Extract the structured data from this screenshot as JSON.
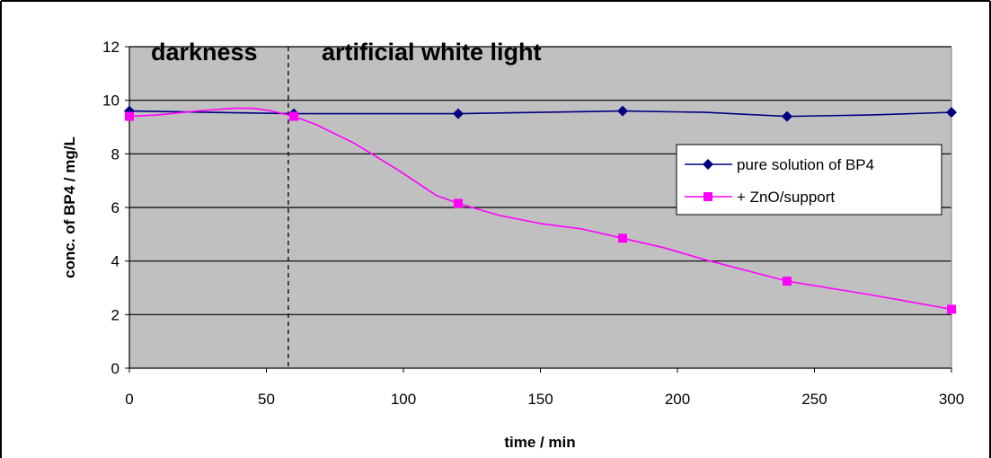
{
  "chart_data": {
    "type": "line",
    "xlabel": "time / min",
    "ylabel": "conc. of BP4 / mg/L",
    "xlim": [
      0,
      300
    ],
    "ylim": [
      0,
      12
    ],
    "xticks": [
      0,
      50,
      100,
      150,
      200,
      250,
      300
    ],
    "yticks": [
      0,
      2,
      4,
      6,
      8,
      10,
      12
    ],
    "grid": "horizontal",
    "plot_background": "#c0c0c0",
    "legend_position": "right",
    "annotations": [
      {
        "text": "darkness",
        "x_from": 0,
        "x_to": 58
      },
      {
        "text": "artificial white light",
        "x_from": 58,
        "x_to": 300
      }
    ],
    "divider_x": 58,
    "series": [
      {
        "name": "pure solution of BP4",
        "color": "#000080",
        "marker": "diamond",
        "x": [
          0,
          60,
          120,
          180,
          240,
          300
        ],
        "y": [
          9.6,
          9.5,
          9.5,
          9.6,
          9.4,
          9.55
        ],
        "curve_x": [
          0,
          60,
          90,
          120,
          150,
          180,
          210,
          240,
          270,
          300
        ],
        "curve_y": [
          9.6,
          9.5,
          9.5,
          9.5,
          9.55,
          9.6,
          9.55,
          9.4,
          9.45,
          9.55
        ]
      },
      {
        "name": "+ ZnO/support",
        "color": "#ff00ff",
        "marker": "square",
        "x": [
          0,
          60,
          120,
          180,
          240,
          300
        ],
        "y": [
          9.4,
          9.4,
          6.15,
          4.85,
          3.25,
          2.2
        ],
        "curve_x": [
          0,
          10,
          25,
          38,
          45,
          52,
          60,
          68,
          82,
          98,
          112,
          120,
          135,
          150,
          165,
          180,
          195,
          210,
          225,
          240,
          270,
          300
        ],
        "curve_y": [
          9.4,
          9.45,
          9.6,
          9.7,
          9.7,
          9.6,
          9.4,
          9.1,
          8.4,
          7.4,
          6.45,
          6.15,
          5.7,
          5.4,
          5.2,
          4.85,
          4.5,
          4.05,
          3.65,
          3.25,
          2.75,
          2.2
        ]
      }
    ]
  }
}
